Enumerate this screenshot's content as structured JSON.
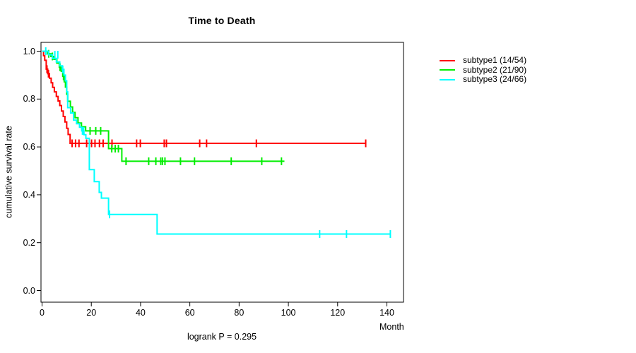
{
  "page": {
    "background": "#ffffff"
  },
  "chart_data": {
    "type": "line",
    "subtype": "kaplan-meier-step",
    "title": "Time to Death",
    "xlabel": "Month",
    "ylabel": "cumulative survival rate",
    "footnote": "logrank P = 0.295",
    "grid": false,
    "legend_position": "right",
    "xlim": [
      0,
      147
    ],
    "ylim": [
      0,
      1
    ],
    "x_ticks": [
      0,
      20,
      40,
      60,
      80,
      100,
      120,
      140
    ],
    "y_ticks": [
      0.0,
      0.2,
      0.4,
      0.6,
      0.8,
      1.0
    ],
    "series": [
      {
        "name": "subtype1 (14/54)",
        "color": "#ff0000",
        "steps": [
          [
            0,
            1.0
          ],
          [
            0.6,
            0.981
          ],
          [
            1.1,
            0.962
          ],
          [
            1.7,
            0.925
          ],
          [
            2.3,
            0.906
          ],
          [
            3.0,
            0.887
          ],
          [
            3.7,
            0.868
          ],
          [
            4.3,
            0.849
          ],
          [
            5.0,
            0.83
          ],
          [
            5.8,
            0.811
          ],
          [
            6.5,
            0.792
          ],
          [
            7.2,
            0.773
          ],
          [
            7.9,
            0.75
          ],
          [
            8.6,
            0.727
          ],
          [
            9.3,
            0.704
          ],
          [
            10.0,
            0.678
          ],
          [
            10.6,
            0.652
          ],
          [
            11.4,
            0.615
          ]
        ],
        "end_month": 131.4,
        "censors": [
          [
            2.0,
            0.925
          ],
          [
            2.6,
            0.906
          ],
          [
            12.2,
            0.615
          ],
          [
            13.6,
            0.615
          ],
          [
            15.0,
            0.615
          ],
          [
            18.1,
            0.615
          ],
          [
            20.1,
            0.615
          ],
          [
            21.5,
            0.615
          ],
          [
            23.3,
            0.615
          ],
          [
            24.8,
            0.615
          ],
          [
            28.4,
            0.615
          ],
          [
            38.4,
            0.615
          ],
          [
            39.9,
            0.615
          ],
          [
            49.6,
            0.615
          ],
          [
            50.5,
            0.615
          ],
          [
            64.0,
            0.615
          ],
          [
            66.8,
            0.615
          ],
          [
            87.0,
            0.615
          ],
          [
            131.4,
            0.615
          ]
        ]
      },
      {
        "name": "subtype2 (21/90)",
        "color": "#00ee00",
        "steps": [
          [
            0,
            1.0
          ],
          [
            2.2,
            0.989
          ],
          [
            3.6,
            0.978
          ],
          [
            4.8,
            0.966
          ],
          [
            6.0,
            0.95
          ],
          [
            7.0,
            0.933
          ],
          [
            7.8,
            0.916
          ],
          [
            8.4,
            0.895
          ],
          [
            9.0,
            0.872
          ],
          [
            9.5,
            0.85
          ],
          [
            10.0,
            0.82
          ],
          [
            10.4,
            0.791
          ],
          [
            11.5,
            0.767
          ],
          [
            12.4,
            0.744
          ],
          [
            13.4,
            0.722
          ],
          [
            14.6,
            0.7
          ],
          [
            16.0,
            0.684
          ],
          [
            17.7,
            0.667
          ],
          [
            27.0,
            0.593
          ],
          [
            32.4,
            0.54
          ]
        ],
        "end_month": 98.4,
        "censors": [
          [
            2.7,
            0.989
          ],
          [
            4.2,
            0.978
          ],
          [
            7.3,
            0.933
          ],
          [
            8.7,
            0.895
          ],
          [
            19.5,
            0.667
          ],
          [
            21.8,
            0.667
          ],
          [
            23.8,
            0.667
          ],
          [
            28.3,
            0.593
          ],
          [
            29.7,
            0.593
          ],
          [
            31.0,
            0.593
          ],
          [
            34.1,
            0.54
          ],
          [
            43.3,
            0.54
          ],
          [
            46.2,
            0.54
          ],
          [
            48.2,
            0.54
          ],
          [
            48.9,
            0.54
          ],
          [
            49.9,
            0.54
          ],
          [
            56.2,
            0.54
          ],
          [
            61.9,
            0.54
          ],
          [
            76.8,
            0.54
          ],
          [
            89.2,
            0.54
          ],
          [
            97.2,
            0.54
          ]
        ]
      },
      {
        "name": "subtype3 (24/66)",
        "color": "#00ffff",
        "steps": [
          [
            0,
            1.0
          ],
          [
            2.6,
            0.985
          ],
          [
            4.2,
            0.97
          ],
          [
            5.8,
            0.955
          ],
          [
            7.2,
            0.939
          ],
          [
            8.2,
            0.924
          ],
          [
            8.9,
            0.9
          ],
          [
            9.5,
            0.876
          ],
          [
            10.0,
            0.83
          ],
          [
            10.4,
            0.764
          ],
          [
            11.6,
            0.742
          ],
          [
            12.8,
            0.712
          ],
          [
            14.0,
            0.697
          ],
          [
            15.2,
            0.682
          ],
          [
            16.1,
            0.667
          ],
          [
            17.0,
            0.651
          ],
          [
            17.8,
            0.636
          ],
          [
            19.2,
            0.505
          ],
          [
            21.2,
            0.455
          ],
          [
            23.2,
            0.41
          ],
          [
            24.1,
            0.386
          ],
          [
            27.0,
            0.318
          ],
          [
            46.7,
            0.236
          ]
        ],
        "end_month": 141.4,
        "censors": [
          [
            1.5,
            1.0
          ],
          [
            5.2,
            0.985
          ],
          [
            6.4,
            0.985
          ],
          [
            8.4,
            0.924
          ],
          [
            16.4,
            0.667
          ],
          [
            16.9,
            0.667
          ],
          [
            27.4,
            0.318
          ],
          [
            112.7,
            0.236
          ],
          [
            123.6,
            0.236
          ],
          [
            141.4,
            0.236
          ]
        ]
      }
    ]
  }
}
